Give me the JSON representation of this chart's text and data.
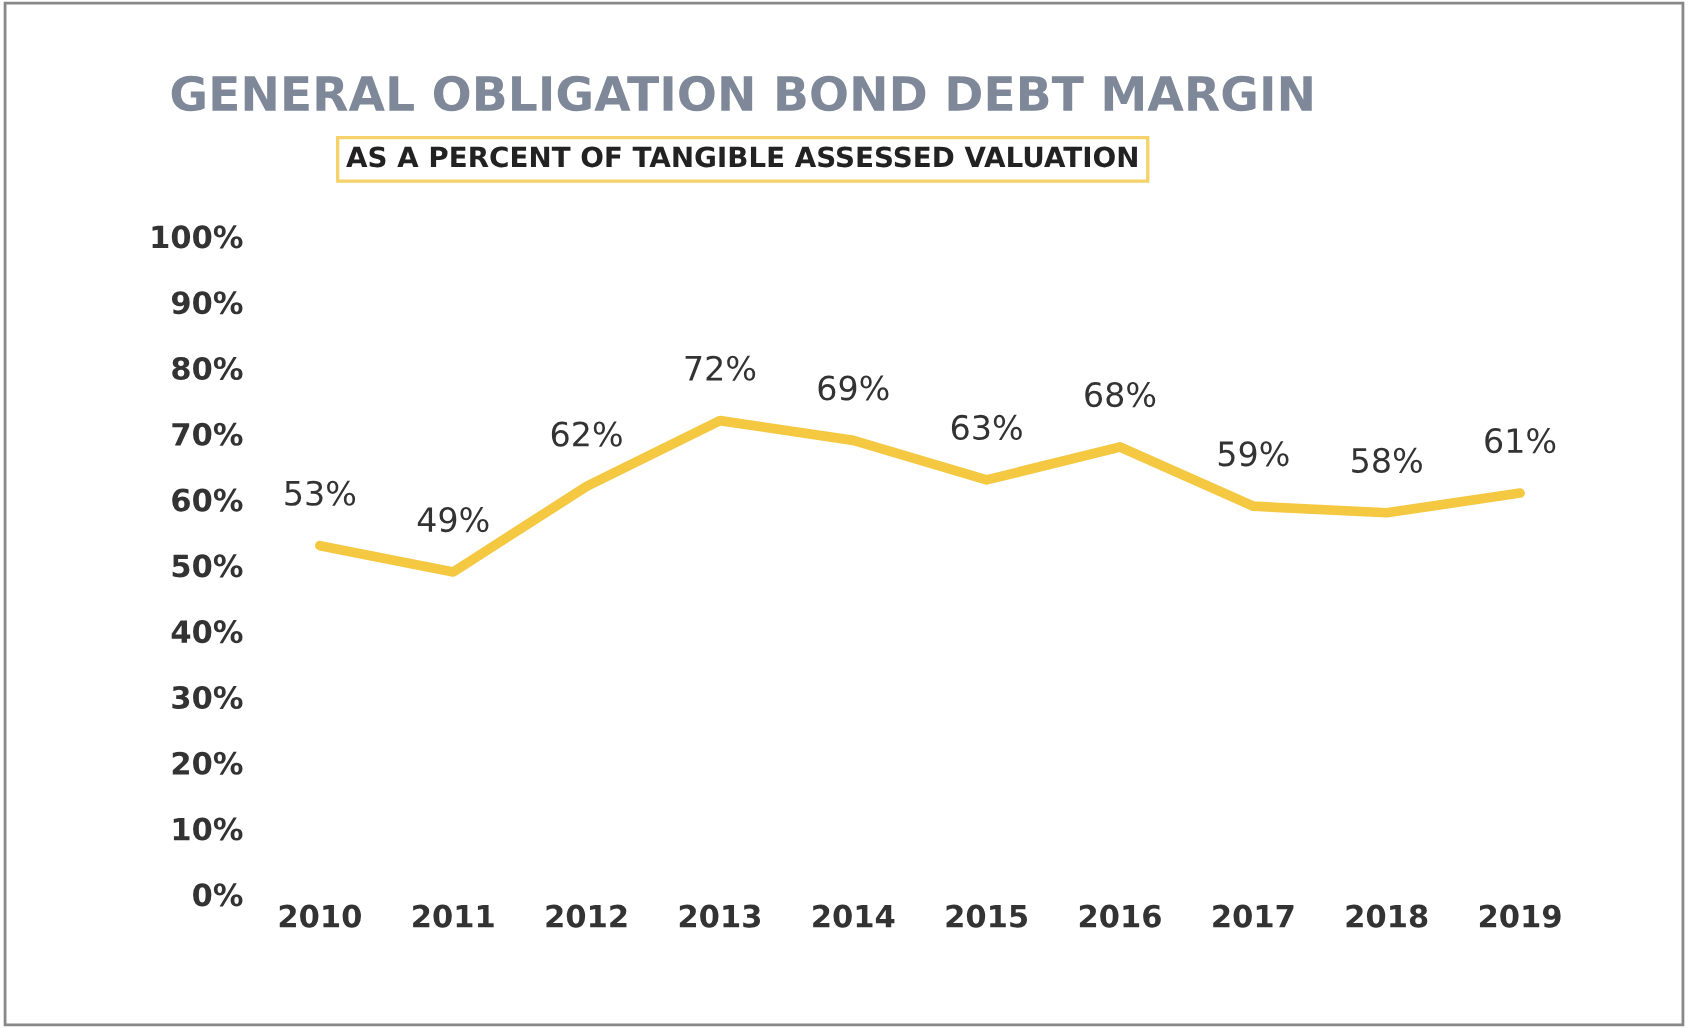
{
  "chart_data": {
    "type": "line",
    "title": "GENERAL OBLIGATION BOND DEBT MARGIN",
    "subtitle": "AS A PERCENT OF TANGIBLE ASSESSED VALUATION",
    "categories": [
      "2010",
      "2011",
      "2012",
      "2013",
      "2014",
      "2015",
      "2016",
      "2017",
      "2018",
      "2019"
    ],
    "series": [
      {
        "color": "#f5c842",
        "values": [
          53,
          49,
          62,
          72,
          69,
          63,
          68,
          59,
          58,
          61
        ]
      }
    ],
    "value_labels": [
      "53%",
      "49%",
      "62%",
      "72%",
      "69%",
      "63%",
      "68%",
      "59%",
      "58%",
      "61%"
    ],
    "ylim": [
      0,
      100
    ],
    "yticks": [
      {
        "value": 0,
        "label": "0%"
      },
      {
        "value": 10,
        "label": "10%"
      },
      {
        "value": 20,
        "label": "20%"
      },
      {
        "value": 30,
        "label": "30%"
      },
      {
        "value": 40,
        "label": "40%"
      },
      {
        "value": 50,
        "label": "50%"
      },
      {
        "value": 60,
        "label": "60%"
      },
      {
        "value": 70,
        "label": "70%"
      },
      {
        "value": 80,
        "label": "80%"
      },
      {
        "value": 90,
        "label": "90%"
      },
      {
        "value": 100,
        "label": "100%"
      }
    ],
    "line_style": "solid",
    "marker": "none"
  }
}
